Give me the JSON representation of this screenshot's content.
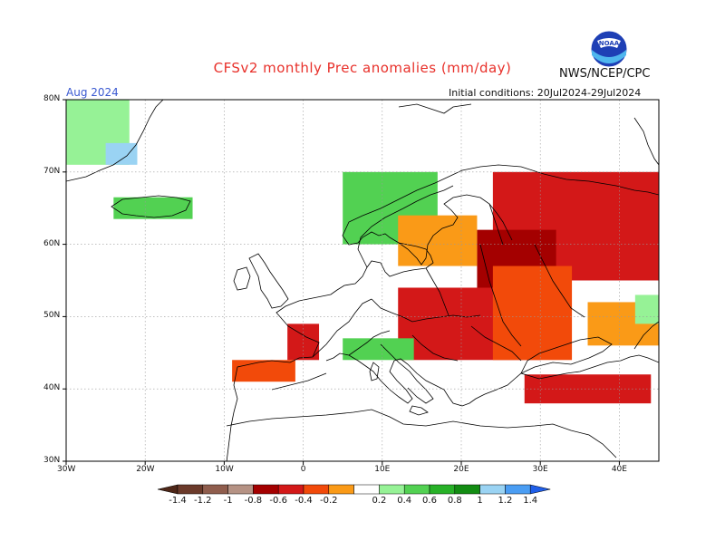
{
  "header": {
    "title": "CFSv2 monthly Prec anomalies (mm/day)",
    "agency": "NWS/NCEP/CPC",
    "valid_month": "Aug 2024",
    "initial_conditions": "Initial conditions: 20Jul2024-29Jul2024",
    "logo_text": "NOAA"
  },
  "map": {
    "lat_labels": [
      "80N",
      "70N",
      "60N",
      "50N",
      "40N",
      "30N"
    ],
    "lon_labels": [
      "30W",
      "20W",
      "10W",
      "0",
      "10E",
      "20E",
      "30E",
      "40E"
    ],
    "lat_values": [
      80,
      70,
      60,
      50,
      40,
      30
    ],
    "lon_values": [
      -30,
      -20,
      -10,
      0,
      10,
      20,
      30,
      40
    ],
    "lon_range": [
      -30,
      45
    ],
    "lat_range": [
      30,
      80
    ],
    "grid_dashed": true,
    "anomaly_regions": [
      {
        "name": "Greenland",
        "lon": [
          -30,
          -22
        ],
        "lat": [
          71,
          80
        ],
        "class": "0.4"
      },
      {
        "name": "Greenland-blue",
        "lon": [
          -25,
          -21
        ],
        "lat": [
          71,
          74
        ],
        "class": "1.2"
      },
      {
        "name": "Iceland",
        "lon": [
          -24,
          -14
        ],
        "lat": [
          63.5,
          66.5
        ],
        "class": "0.6"
      },
      {
        "name": "Norway-coast",
        "lon": [
          5,
          17
        ],
        "lat": [
          60,
          70
        ],
        "class": "0.6"
      },
      {
        "name": "Northwest-Russia",
        "lon": [
          24,
          45
        ],
        "lat": [
          55,
          70
        ],
        "class": "-0.6"
      },
      {
        "name": "Baltic",
        "lon": [
          22,
          32
        ],
        "lat": [
          53,
          62
        ],
        "class": "-0.8"
      },
      {
        "name": "Central-Europe",
        "lon": [
          12,
          30
        ],
        "lat": [
          44,
          54
        ],
        "class": "-0.6"
      },
      {
        "name": "Eastern-Europe",
        "lon": [
          24,
          34
        ],
        "lat": [
          44,
          57
        ],
        "class": "-0.4"
      },
      {
        "name": "Scandinavia-south",
        "lon": [
          12,
          22
        ],
        "lat": [
          57,
          64
        ],
        "class": "-0.2"
      },
      {
        "name": "France-west",
        "lon": [
          -2,
          2
        ],
        "lat": [
          44,
          49
        ],
        "class": "-0.6"
      },
      {
        "name": "Iberia-north",
        "lon": [
          -9,
          -1
        ],
        "lat": [
          41,
          44
        ],
        "class": "-0.4"
      },
      {
        "name": "Alps",
        "lon": [
          5,
          14
        ],
        "lat": [
          44,
          47
        ],
        "class": "0.6"
      },
      {
        "name": "Turkey",
        "lon": [
          28,
          44
        ],
        "lat": [
          38,
          42
        ],
        "class": "-0.6"
      },
      {
        "name": "Ukraine-east",
        "lon": [
          36,
          45
        ],
        "lat": [
          46,
          52
        ],
        "class": "-0.2"
      },
      {
        "name": "Urals-west",
        "lon": [
          42,
          45
        ],
        "lat": [
          49,
          53
        ],
        "class": "0.4"
      }
    ]
  },
  "colorbar": {
    "labels": [
      "-1.4",
      "-1.2",
      "-1",
      "-0.8",
      "-0.6",
      "-0.4",
      "-0.2",
      "0.2",
      "0.4",
      "0.6",
      "0.8",
      "1",
      "1.2",
      "1.4"
    ],
    "colors": [
      "#6b3a2a",
      "#8f5d4d",
      "#b59284",
      "#a40000",
      "#d31818",
      "#f24a0a",
      "#fa9a17",
      "#ffffff",
      "#96f296",
      "#52d152",
      "#27b127",
      "#128c12",
      "#9ad3f3",
      "#4a9df3"
    ],
    "low_end_color": "#4e2718",
    "high_end_color": "#1f5ee8"
  }
}
